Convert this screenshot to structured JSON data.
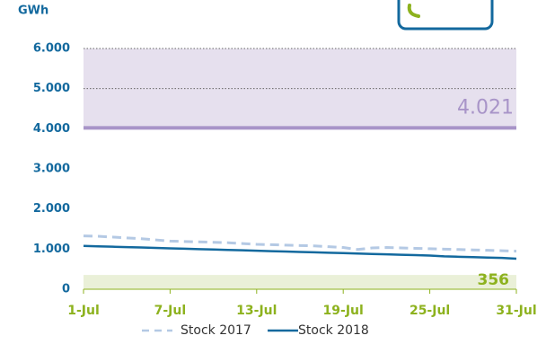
{
  "chart_data": {
    "type": "line",
    "y_axis_label": "GWh",
    "categories": [
      "1-Jul",
      null,
      null,
      null,
      null,
      null,
      "7-Jul",
      null,
      null,
      null,
      null,
      null,
      "13-Jul",
      null,
      null,
      null,
      null,
      null,
      "19-Jul",
      null,
      null,
      null,
      null,
      null,
      "25-Jul",
      null,
      null,
      null,
      null,
      null,
      "31-Jul"
    ],
    "series": [
      {
        "name": "Stock 2017",
        "color": "#b4c9e4",
        "dashed": true,
        "values": [
          1330,
          1320,
          1300,
          1280,
          1260,
          1230,
          1200,
          1190,
          1180,
          1170,
          1160,
          1140,
          1120,
          1110,
          1100,
          1090,
          1080,
          1060,
          1040,
          990,
          1030,
          1040,
          1030,
          1020,
          1010,
          1000,
          990,
          980,
          970,
          960,
          950
        ]
      },
      {
        "name": "Stock 2018",
        "color": "#13699e",
        "dashed": false,
        "values": [
          1080,
          1070,
          1060,
          1050,
          1040,
          1030,
          1020,
          1010,
          1000,
          990,
          980,
          970,
          960,
          950,
          940,
          930,
          920,
          910,
          900,
          890,
          880,
          870,
          860,
          850,
          840,
          820,
          810,
          800,
          790,
          780,
          760
        ]
      }
    ],
    "ylim": [
      0,
      6000
    ],
    "yticks": [
      0,
      {
        "value": 1000,
        "label": "1.000"
      },
      {
        "value": 2000,
        "label": "2.000"
      },
      {
        "value": 3000,
        "label": "3.000"
      },
      {
        "value": 4000,
        "label": "4.000"
      },
      {
        "value": 5000,
        "label": "5.000"
      },
      {
        "value": 6000,
        "label": "6.000"
      }
    ],
    "upper_threshold": {
      "value": 4021,
      "label": "4.021",
      "color": "#a894c8",
      "band_color": "#e6e0ee"
    },
    "lower_threshold": {
      "value": 356,
      "label": "356",
      "color": "#8db21e",
      "band_color": "#eaf0d8"
    },
    "legend": "bottom"
  }
}
